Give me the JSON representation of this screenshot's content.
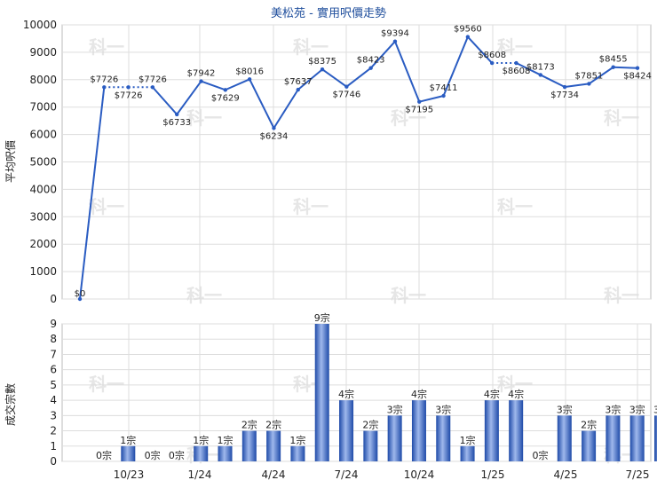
{
  "chart_data": [
    {
      "type": "line",
      "title": "美松苑 - 實用呎價走勢",
      "ylabel": "平均呎價",
      "ylim": [
        0,
        10000
      ],
      "yticks": [
        0,
        1000,
        2000,
        3000,
        4000,
        5000,
        6000,
        7000,
        8000,
        9000,
        10000
      ],
      "grid": true,
      "series": [
        {
          "values": [
            0,
            7726,
            7726,
            7726,
            6733,
            7942,
            7629,
            8016,
            6234,
            7637,
            8375,
            7746,
            8423,
            9394,
            7195,
            7411,
            9560,
            8608,
            8608,
            8173,
            7734,
            7851,
            8455,
            8424
          ],
          "labels": [
            "$0",
            "$7726",
            "$7726",
            "$7726",
            "$6733",
            "$7942",
            "$7629",
            "$8016",
            "$6234",
            "$7637",
            "$8375",
            "$7746",
            "$8423",
            "$9394",
            "$7195",
            "$7411",
            "$9560",
            "$8608",
            "$8608",
            "$8173",
            "$7734",
            "$7851",
            "$8455",
            "$8424"
          ],
          "dotted_segments": [
            1,
            2,
            17
          ],
          "color": "#2a5cc2"
        }
      ]
    },
    {
      "type": "bar",
      "ylabel": "成交宗數",
      "ylim": [
        0,
        9
      ],
      "yticks": [
        0,
        1,
        2,
        3,
        4,
        5,
        6,
        7,
        8,
        9
      ],
      "grid": true,
      "x_tick_labels": [
        "10/23",
        "1/24",
        "4/24",
        "7/24",
        "10/24",
        "1/25",
        "4/25",
        "7/25"
      ],
      "values": [
        0,
        1,
        0,
        0,
        1,
        1,
        2,
        2,
        1,
        9,
        4,
        2,
        3,
        4,
        3,
        1,
        4,
        4,
        0,
        3,
        2,
        3,
        3,
        3
      ],
      "labels": [
        "0宗",
        "1宗",
        "0宗",
        "0宗",
        "1宗",
        "1宗",
        "2宗",
        "2宗",
        "1宗",
        "9宗",
        "4宗",
        "2宗",
        "3宗",
        "4宗",
        "3宗",
        "1宗",
        "4宗",
        "4宗",
        "0宗",
        "3宗",
        "2宗",
        "3宗",
        "3宗",
        "3宗"
      ],
      "color": "#2a5cc2"
    }
  ]
}
